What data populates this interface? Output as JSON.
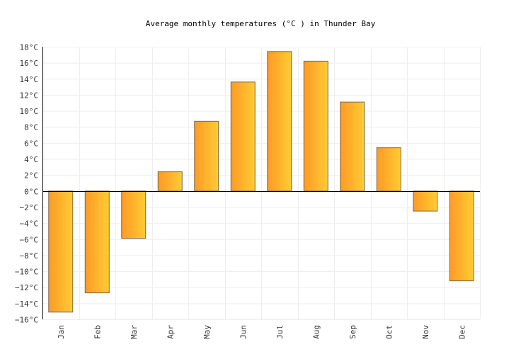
{
  "chart_data": {
    "type": "bar",
    "title": "Average monthly temperatures (°C ) in Thunder Bay",
    "xlabel": "",
    "ylabel": "",
    "categories": [
      "Jan",
      "Feb",
      "Mar",
      "Apr",
      "May",
      "Jun",
      "Jul",
      "Aug",
      "Sep",
      "Oct",
      "Nov",
      "Dec"
    ],
    "values": [
      -15.1,
      -12.7,
      -5.9,
      2.4,
      8.7,
      13.6,
      17.4,
      16.2,
      11.1,
      5.4,
      -2.5,
      -11.2
    ],
    "ylim": [
      -16,
      18
    ],
    "yticks": [
      18,
      16,
      14,
      12,
      10,
      8,
      6,
      4,
      2,
      0,
      -2,
      -4,
      -6,
      -8,
      -10,
      -12,
      -14,
      -16
    ],
    "ytick_labels": [
      "18°C",
      "16°C",
      "14°C",
      "12°C",
      "10°C",
      "8°C",
      "6°C",
      "4°C",
      "2°C",
      "0°C",
      "−2°C",
      "−4°C",
      "−6°C",
      "−8°C",
      "−10°C",
      "−12°C",
      "−14°C",
      "−16°C"
    ],
    "grid": true,
    "legend": "none",
    "colors": {
      "bar_start": "#ff9a26",
      "bar_end": "#ffcc33",
      "bar_stroke": "#7a6a4a",
      "grid": "#eeeeee"
    }
  }
}
